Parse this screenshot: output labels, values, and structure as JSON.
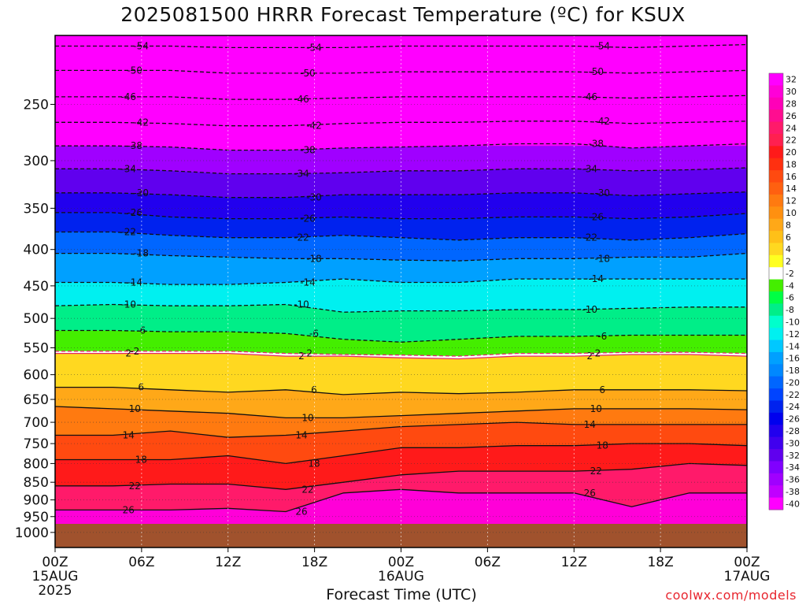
{
  "title": "2025081500 HRRR Forecast Temperature (ºC) for KSUX",
  "credit": "coolwx.com/models",
  "chart_data": {
    "type": "time-height contour",
    "title": "2025081500 HRRR Forecast Temperature (ºC) for KSUX",
    "xlabel": "Forecast Time (UTC)",
    "ylabel": "",
    "x_ticks": [
      {
        "hour": 0,
        "label": "00Z",
        "sub": "15AUG",
        "sub2": "2025"
      },
      {
        "hour": 6,
        "label": "06Z",
        "sub": "",
        "sub2": ""
      },
      {
        "hour": 12,
        "label": "12Z",
        "sub": "",
        "sub2": ""
      },
      {
        "hour": 18,
        "label": "18Z",
        "sub": "",
        "sub2": ""
      },
      {
        "hour": 24,
        "label": "00Z",
        "sub": "16AUG",
        "sub2": ""
      },
      {
        "hour": 30,
        "label": "06Z",
        "sub": "",
        "sub2": ""
      },
      {
        "hour": 36,
        "label": "12Z",
        "sub": "",
        "sub2": ""
      },
      {
        "hour": 42,
        "label": "18Z",
        "sub": "",
        "sub2": ""
      },
      {
        "hour": 48,
        "label": "00Z",
        "sub": "17AUG",
        "sub2": ""
      }
    ],
    "x_range_hours": [
      0,
      48
    ],
    "y_ticks": [
      "250",
      "300",
      "350",
      "400",
      "450",
      "500",
      "550",
      "600",
      "650",
      "700",
      "750",
      "800",
      "850",
      "900",
      "950",
      "1000"
    ],
    "y_range_hpa": [
      200,
      1050
    ],
    "y_scale": "log",
    "surface_pressure_hpa": 965,
    "colorbar": {
      "labels": [
        "32",
        "30",
        "28",
        "26",
        "24",
        "22",
        "20",
        "18",
        "16",
        "14",
        "12",
        "10",
        "8",
        "6",
        "4",
        "2",
        "-2",
        "-4",
        "-6",
        "-8",
        "-10",
        "-12",
        "-14",
        "-16",
        "-18",
        "-20",
        "-22",
        "-24",
        "-26",
        "-28",
        "-30",
        "-32",
        "-34",
        "-36",
        "-38",
        "-40"
      ],
      "colors": [
        "#ff00ff",
        "#ff00d8",
        "#ff00b8",
        "#ff0d90",
        "#ff1a6a",
        "#ff2050",
        "#ff1a1a",
        "#ff3010",
        "#ff4a10",
        "#ff6010",
        "#ff7a10",
        "#ff9010",
        "#ffa818",
        "#ffc018",
        "#ffd820",
        "#ffff20",
        "#ffffff",
        "#44ee00",
        "#00ff44",
        "#00ee88",
        "#00ffcc",
        "#00f0f0",
        "#00c8ff",
        "#00a0ff",
        "#0088ff",
        "#0066ff",
        "#0044ff",
        "#0022ee",
        "#0000ee",
        "#2200ee",
        "#4000ee",
        "#6000ee",
        "#8000ff",
        "#a000ff",
        "#c000ff",
        "#ff00ff"
      ]
    },
    "series": [
      {
        "temp": 2,
        "pressure_hpa": [
          560,
          560,
          560,
          560,
          565,
          565,
          568,
          570,
          565,
          565,
          562,
          562,
          565
        ]
      },
      {
        "temp": -2,
        "pressure_hpa": [
          556,
          556,
          556,
          556,
          560,
          562,
          563,
          565,
          560,
          560,
          558,
          558,
          560
        ]
      },
      {
        "temp": 6,
        "pressure_hpa": [
          625,
          625,
          630,
          635,
          630,
          640,
          635,
          638,
          635,
          630,
          630,
          630,
          632
        ]
      },
      {
        "temp": 10,
        "pressure_hpa": [
          665,
          670,
          675,
          680,
          690,
          690,
          685,
          680,
          675,
          670,
          670,
          670,
          672
        ]
      },
      {
        "temp": 14,
        "pressure_hpa": [
          730,
          730,
          720,
          735,
          730,
          720,
          710,
          705,
          700,
          705,
          705,
          705,
          705
        ]
      },
      {
        "temp": 18,
        "pressure_hpa": [
          790,
          790,
          790,
          780,
          800,
          780,
          760,
          760,
          755,
          755,
          750,
          750,
          755
        ]
      },
      {
        "temp": 22,
        "pressure_hpa": [
          860,
          860,
          855,
          855,
          870,
          850,
          830,
          820,
          820,
          820,
          815,
          800,
          805
        ]
      },
      {
        "temp": 26,
        "pressure_hpa": [
          930,
          930,
          930,
          925,
          935,
          880,
          870,
          880,
          880,
          880,
          920,
          880,
          880
        ]
      },
      {
        "temp": -6,
        "pressure_hpa": [
          520,
          520,
          522,
          522,
          525,
          535,
          540,
          535,
          530,
          530,
          528,
          528,
          528
        ]
      },
      {
        "temp": -10,
        "pressure_hpa": [
          480,
          478,
          480,
          480,
          478,
          490,
          488,
          488,
          486,
          486,
          484,
          482,
          482
        ]
      },
      {
        "temp": -14,
        "pressure_hpa": [
          445,
          445,
          448,
          448,
          445,
          440,
          445,
          445,
          440,
          440,
          440,
          440,
          440
        ]
      },
      {
        "temp": -18,
        "pressure_hpa": [
          405,
          405,
          408,
          410,
          412,
          412,
          414,
          415,
          412,
          412,
          410,
          410,
          405
        ]
      },
      {
        "temp": -22,
        "pressure_hpa": [
          378,
          378,
          382,
          385,
          385,
          382,
          385,
          388,
          385,
          385,
          388,
          385,
          380
        ]
      },
      {
        "temp": -26,
        "pressure_hpa": [
          355,
          355,
          360,
          362,
          362,
          360,
          362,
          362,
          360,
          360,
          362,
          360,
          356
        ]
      },
      {
        "temp": -30,
        "pressure_hpa": [
          333,
          333,
          335,
          338,
          338,
          335,
          335,
          335,
          333,
          333,
          336,
          334,
          332
        ]
      },
      {
        "temp": -34,
        "pressure_hpa": [
          308,
          308,
          310,
          313,
          313,
          312,
          310,
          310,
          308,
          308,
          310,
          309,
          307
        ]
      },
      {
        "temp": -38,
        "pressure_hpa": [
          286,
          286,
          287,
          290,
          290,
          288,
          287,
          286,
          284,
          284,
          288,
          286,
          284
        ]
      },
      {
        "temp": -42,
        "pressure_hpa": [
          265,
          265,
          266,
          268,
          268,
          266,
          265,
          265,
          264,
          264,
          266,
          265,
          264
        ]
      },
      {
        "temp": -46,
        "pressure_hpa": [
          244,
          244,
          244,
          246,
          246,
          245,
          244,
          244,
          244,
          244,
          245,
          244,
          243
        ]
      },
      {
        "temp": -50,
        "pressure_hpa": [
          224,
          224,
          224,
          226,
          226,
          226,
          225,
          225,
          225,
          225,
          226,
          225,
          224
        ]
      },
      {
        "temp": -54,
        "pressure_hpa": [
          207,
          207,
          207,
          208,
          208,
          208,
          207,
          207,
          207,
          207,
          208,
          207,
          206
        ]
      }
    ],
    "grid": true
  }
}
